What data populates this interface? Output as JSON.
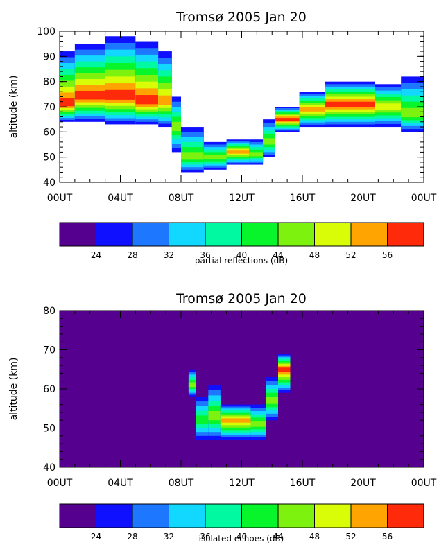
{
  "chart_data": [
    {
      "type": "heatmap",
      "title": "Tromsø 2005 Jan 20",
      "ylabel": "altitude (km)",
      "xlabel": "",
      "x_ticks": [
        "00UT",
        "04UT",
        "08UT",
        "12UT",
        "16UT",
        "20UT",
        "00UT"
      ],
      "xlim_hours": [
        0,
        24
      ],
      "y_ticks": [
        40,
        50,
        60,
        70,
        80,
        90,
        100
      ],
      "ylim": [
        40,
        100
      ],
      "colorbar": {
        "label": "partial reflections (dB)",
        "ticks": [
          24,
          28,
          32,
          36,
          40,
          44,
          48,
          52,
          56
        ]
      },
      "background": "#ffffff",
      "regions": [
        {
          "hours": [
            0.0,
            1.0
          ],
          "bottom": 64,
          "peak": 71,
          "top": 92,
          "value": 58
        },
        {
          "hours": [
            1.0,
            3.0
          ],
          "bottom": 64,
          "peak": 74,
          "top": 95,
          "value": 58
        },
        {
          "hours": [
            3.0,
            5.0
          ],
          "bottom": 63,
          "peak": 74,
          "top": 98,
          "value": 58
        },
        {
          "hours": [
            5.0,
            6.5
          ],
          "bottom": 63,
          "peak": 72,
          "top": 96,
          "value": 57
        },
        {
          "hours": [
            6.5,
            7.4
          ],
          "bottom": 62,
          "peak": 72,
          "top": 92,
          "value": 54
        },
        {
          "hours": [
            7.4,
            8.0
          ],
          "bottom": 52,
          "peak": 62,
          "top": 74,
          "value": 44
        },
        {
          "hours": [
            8.0,
            9.5
          ],
          "bottom": 44,
          "peak": 50,
          "top": 62,
          "value": 46
        },
        {
          "hours": [
            9.5,
            11.0
          ],
          "bottom": 45,
          "peak": 50,
          "top": 56,
          "value": 47
        },
        {
          "hours": [
            11.0,
            12.5
          ],
          "bottom": 47,
          "peak": 52,
          "top": 57,
          "value": 54
        },
        {
          "hours": [
            12.5,
            13.4
          ],
          "bottom": 47,
          "peak": 51,
          "top": 57,
          "value": 46
        },
        {
          "hours": [
            13.4,
            14.2
          ],
          "bottom": 50,
          "peak": 56,
          "top": 65,
          "value": 44
        },
        {
          "hours": [
            14.2,
            15.8
          ],
          "bottom": 60,
          "peak": 65,
          "top": 70,
          "value": 56
        },
        {
          "hours": [
            15.8,
            17.5
          ],
          "bottom": 62,
          "peak": 69,
          "top": 76,
          "value": 52
        },
        {
          "hours": [
            17.5,
            20.8
          ],
          "bottom": 62,
          "peak": 71,
          "top": 80,
          "value": 57
        },
        {
          "hours": [
            20.8,
            22.5
          ],
          "bottom": 62,
          "peak": 70,
          "top": 79,
          "value": 50
        },
        {
          "hours": [
            22.5,
            24.0
          ],
          "bottom": 60,
          "peak": 67,
          "top": 82,
          "value": 45
        }
      ]
    },
    {
      "type": "heatmap",
      "title": "Tromsø 2005 Jan 20",
      "ylabel": "altitude (km)",
      "xlabel": "",
      "x_ticks": [
        "00UT",
        "04UT",
        "08UT",
        "12UT",
        "16UT",
        "20UT",
        "00UT"
      ],
      "xlim_hours": [
        0,
        24
      ],
      "y_ticks": [
        40,
        50,
        60,
        70,
        80
      ],
      "ylim": [
        40,
        80
      ],
      "colorbar": {
        "label": "isolated echoes (dB)",
        "ticks": [
          24,
          28,
          32,
          36,
          40,
          44,
          48,
          52,
          56
        ]
      },
      "background": "#55008f",
      "regions": [
        {
          "hours": [
            8.5,
            9.0
          ],
          "bottom": 58,
          "peak": 61,
          "top": 65,
          "value": 44
        },
        {
          "hours": [
            9.0,
            9.8
          ],
          "bottom": 47,
          "peak": 52,
          "top": 58,
          "value": 42
        },
        {
          "hours": [
            9.8,
            10.6
          ],
          "bottom": 47,
          "peak": 53,
          "top": 61,
          "value": 44
        },
        {
          "hours": [
            10.6,
            12.6
          ],
          "bottom": 47,
          "peak": 52,
          "top": 56,
          "value": 53
        },
        {
          "hours": [
            12.6,
            13.6
          ],
          "bottom": 47,
          "peak": 51,
          "top": 56,
          "value": 44
        },
        {
          "hours": [
            13.6,
            14.4
          ],
          "bottom": 52,
          "peak": 57,
          "top": 63,
          "value": 44
        },
        {
          "hours": [
            14.4,
            15.2
          ],
          "bottom": 59,
          "peak": 65,
          "top": 69,
          "value": 58
        }
      ]
    }
  ],
  "palette": [
    "#55008f",
    "#0e10ff",
    "#1e78ff",
    "#12d8ff",
    "#00f9a1",
    "#08f52b",
    "#7ef20f",
    "#d8fd07",
    "#ffa400",
    "#ff2a0a"
  ]
}
